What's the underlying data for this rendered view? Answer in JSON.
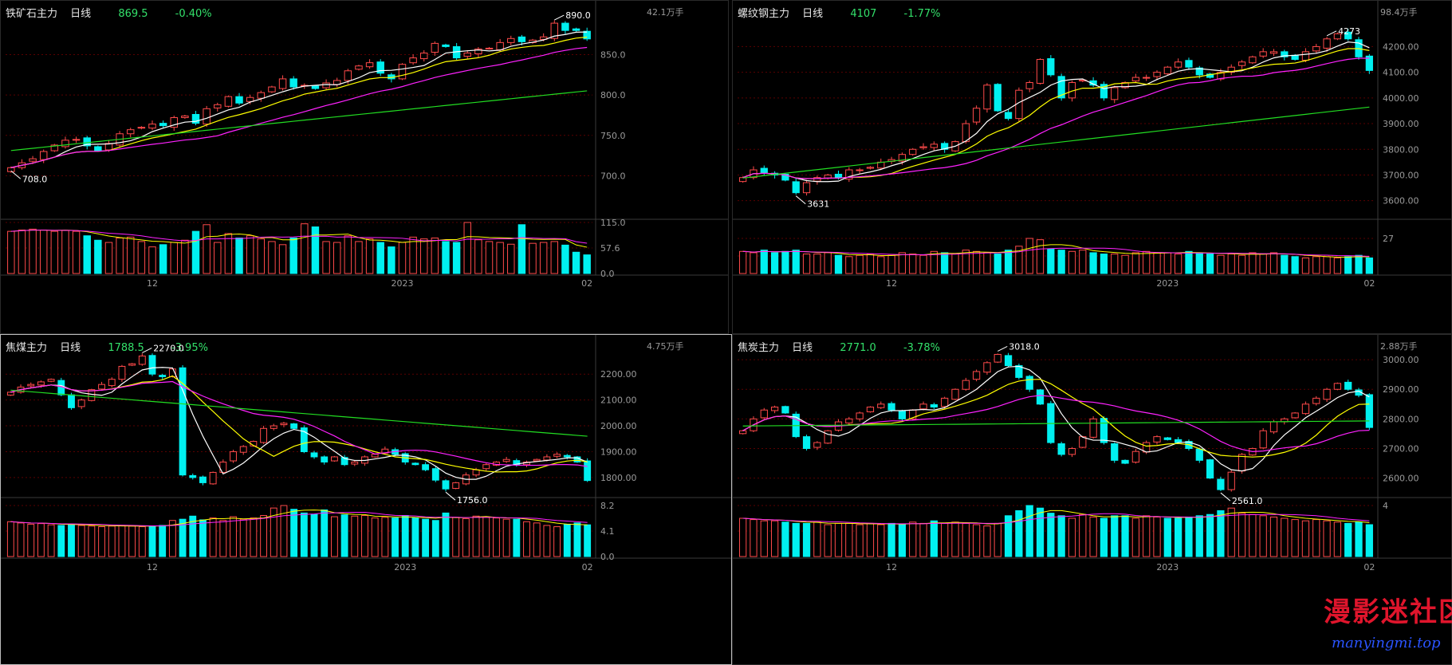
{
  "panels": [
    {
      "name": "铁矿石主力",
      "period": "日线",
      "price": "869.5",
      "change": "-0.40%",
      "vol_label": "42.1万手",
      "ylabels": [
        "850.0",
        "800.0",
        "750.0",
        "700.0"
      ],
      "vol_ylabels": [
        "115.0",
        "57.6",
        "0.0"
      ],
      "xlabels": [
        "12",
        "2023",
        "02"
      ],
      "annotations": [
        "890.0",
        "708.0"
      ]
    },
    {
      "name": "螺纹钢主力",
      "period": "日线",
      "price": "4107",
      "change": "-1.77%",
      "vol_label": "98.4万手",
      "ylabels": [
        "4200.00",
        "4100.00",
        "4000.00",
        "3900.00",
        "3800.00",
        "3700.00",
        "3600.00"
      ],
      "vol_ylabels": [
        "27"
      ],
      "xlabels": [
        "12",
        "2023",
        "02"
      ],
      "annotations": [
        "4273",
        "3631"
      ]
    },
    {
      "name": "焦煤主力",
      "period": "日线",
      "price": "1788.5",
      "change": "-3.95%",
      "vol_label": "4.75万手",
      "ylabels": [
        "2200.00",
        "2100.00",
        "2000.00",
        "1900.00",
        "1800.00"
      ],
      "vol_ylabels": [
        "8.2",
        "4.1",
        "0.0"
      ],
      "xlabels": [
        "12",
        "2023",
        "02"
      ],
      "annotations": [
        "2270.0",
        "1756.0"
      ]
    },
    {
      "name": "焦炭主力",
      "period": "日线",
      "price": "2771.0",
      "change": "-3.78%",
      "vol_label": "2.88万手",
      "ylabels": [
        "3000.00",
        "2900.00",
        "2800.00",
        "2700.00",
        "2600.00"
      ],
      "vol_ylabels": [
        "4"
      ],
      "xlabels": [
        "12",
        "2023",
        "02"
      ],
      "annotations": [
        "3018.0",
        "2561.0"
      ]
    }
  ],
  "colors": {
    "up": "#ff4a4a",
    "down": "#00f0f0",
    "ma5": "#ffffff",
    "ma10": "#ffff00",
    "ma20": "#ff22ff",
    "ma60": "#22dd22",
    "grid": "#5a0000",
    "axis": "#9a9a9a"
  },
  "watermark": {
    "text": "漫影迷社区",
    "sub": "manyingmi.top"
  },
  "chart_data": [
    {
      "type": "candlestick",
      "title": "铁矿石主力",
      "y_key": [
        [
          0,
          700
        ],
        [
          1,
          870
        ]
      ],
      "ylim": [
        650,
        895
      ],
      "vol_ylim": [
        0,
        115
      ],
      "close": [
        710,
        716,
        721,
        730,
        738,
        744,
        745,
        737,
        731,
        740,
        752,
        757,
        760,
        764,
        762,
        772,
        774,
        765,
        783,
        788,
        798,
        790,
        797,
        803,
        810,
        820,
        810,
        812,
        808,
        815,
        818,
        830,
        836,
        840,
        827,
        820,
        838,
        846,
        852,
        864,
        860,
        846,
        852,
        857,
        858,
        865,
        870,
        866,
        868,
        872,
        889,
        880,
        880,
        869.5
      ],
      "volume": [
        95,
        98,
        100,
        98,
        95,
        97,
        95,
        85,
        75,
        70,
        80,
        82,
        72,
        60,
        65,
        70,
        75,
        95,
        110,
        70,
        90,
        80,
        85,
        78,
        72,
        65,
        80,
        112,
        105,
        72,
        70,
        85,
        72,
        78,
        70,
        60,
        70,
        82,
        78,
        80,
        72,
        70,
        115,
        76,
        72,
        70,
        66,
        110,
        68,
        70,
        72,
        64,
        48,
        42
      ]
    },
    {
      "type": "candlestick",
      "title": "螺纹钢主力",
      "ylim": [
        3540,
        4310
      ],
      "vol_ylim": [
        0,
        27
      ],
      "close": [
        3690,
        3720,
        3710,
        3700,
        3680,
        3631,
        3670,
        3690,
        3700,
        3690,
        3720,
        3720,
        3730,
        3750,
        3760,
        3780,
        3800,
        3810,
        3820,
        3800,
        3830,
        3900,
        3960,
        4050,
        3950,
        3920,
        4030,
        4060,
        4150,
        4090,
        4000,
        4060,
        4070,
        4050,
        4000,
        4040,
        4060,
        4080,
        4080,
        4100,
        4120,
        4140,
        4120,
        4090,
        4080,
        4100,
        4120,
        4140,
        4160,
        4180,
        4180,
        4160,
        4150,
        4180,
        4200,
        4230,
        4250,
        4230,
        4160,
        4107
      ],
      "volume": [
        17,
        16,
        18,
        16,
        17,
        18,
        15,
        15,
        16,
        14,
        13,
        14,
        15,
        13,
        14,
        16,
        15,
        14,
        17,
        16,
        15,
        18,
        17,
        16,
        15,
        18,
        21,
        27,
        26,
        19,
        18,
        17,
        18,
        16,
        15,
        15,
        14,
        16,
        17,
        16,
        16,
        15,
        17,
        16,
        15,
        14,
        15,
        14,
        16,
        15,
        16,
        14,
        13,
        12,
        13,
        13,
        12,
        13,
        14,
        12
      ]
    },
    {
      "type": "candlestick",
      "title": "焦煤主力",
      "ylim": [
        1735,
        2290
      ],
      "vol_ylim": [
        0,
        8.2
      ],
      "close": [
        2130,
        2150,
        2160,
        2170,
        2180,
        2120,
        2070,
        2100,
        2140,
        2160,
        2180,
        2230,
        2240,
        2270,
        2200,
        2190,
        2220,
        1810,
        1800,
        1780,
        1820,
        1860,
        1900,
        1920,
        1940,
        1990,
        2000,
        2010,
        1990,
        1900,
        1880,
        1860,
        1880,
        1850,
        1860,
        1880,
        1890,
        1910,
        1890,
        1860,
        1850,
        1830,
        1790,
        1756,
        1780,
        1810,
        1830,
        1850,
        1860,
        1870,
        1850,
        1860,
        1870,
        1880,
        1890,
        1880,
        1860,
        1788.5
      ],
      "volume": [
        5.6,
        5.4,
        5.2,
        5.3,
        5.1,
        5.0,
        5.2,
        5.0,
        4.9,
        4.8,
        4.9,
        5.0,
        4.9,
        4.8,
        4.9,
        5.0,
        5.8,
        6.0,
        6.5,
        5.9,
        6.2,
        5.8,
        6.4,
        6.0,
        6.2,
        6.6,
        7.8,
        8.2,
        7.6,
        7.0,
        6.8,
        7.5,
        6.4,
        6.7,
        6.5,
        6.6,
        6.2,
        6.3,
        6.2,
        6.6,
        6.2,
        6.0,
        5.8,
        7.0,
        6.3,
        6.1,
        6.5,
        6.3,
        6.2,
        6.0,
        6.0,
        5.6,
        5.4,
        5.0,
        4.8,
        5.2,
        5.4,
        5.1
      ]
    },
    {
      "type": "candlestick",
      "title": "焦炭主力",
      "ylim": [
        2545,
        3030
      ],
      "vol_ylim": [
        0,
        4
      ],
      "close": [
        2760,
        2800,
        2830,
        2840,
        2820,
        2740,
        2700,
        2720,
        2760,
        2790,
        2800,
        2820,
        2840,
        2850,
        2830,
        2800,
        2830,
        2850,
        2840,
        2870,
        2900,
        2930,
        2960,
        2990,
        3018,
        2980,
        2940,
        2900,
        2850,
        2720,
        2680,
        2700,
        2740,
        2800,
        2720,
        2660,
        2650,
        2690,
        2720,
        2740,
        2730,
        2720,
        2700,
        2660,
        2600,
        2561,
        2620,
        2680,
        2700,
        2760,
        2790,
        2800,
        2820,
        2850,
        2870,
        2900,
        2920,
        2900,
        2880,
        2771
      ],
      "volume": [
        3.0,
        2.9,
        2.8,
        2.8,
        2.7,
        2.6,
        2.6,
        2.7,
        2.5,
        2.6,
        2.6,
        2.5,
        2.6,
        2.5,
        2.6,
        2.5,
        2.7,
        2.6,
        2.8,
        2.6,
        2.7,
        2.6,
        2.5,
        2.4,
        2.6,
        3.2,
        3.6,
        4.0,
        3.8,
        3.4,
        3.2,
        3.0,
        3.3,
        3.1,
        3.0,
        3.2,
        3.2,
        3.0,
        3.2,
        3.1,
        3.0,
        3.0,
        3.1,
        3.2,
        3.3,
        3.6,
        3.8,
        3.4,
        3.3,
        3.2,
        3.1,
        3.0,
        2.9,
        2.8,
        2.9,
        2.8,
        2.7,
        2.6,
        2.7,
        2.5
      ]
    }
  ]
}
